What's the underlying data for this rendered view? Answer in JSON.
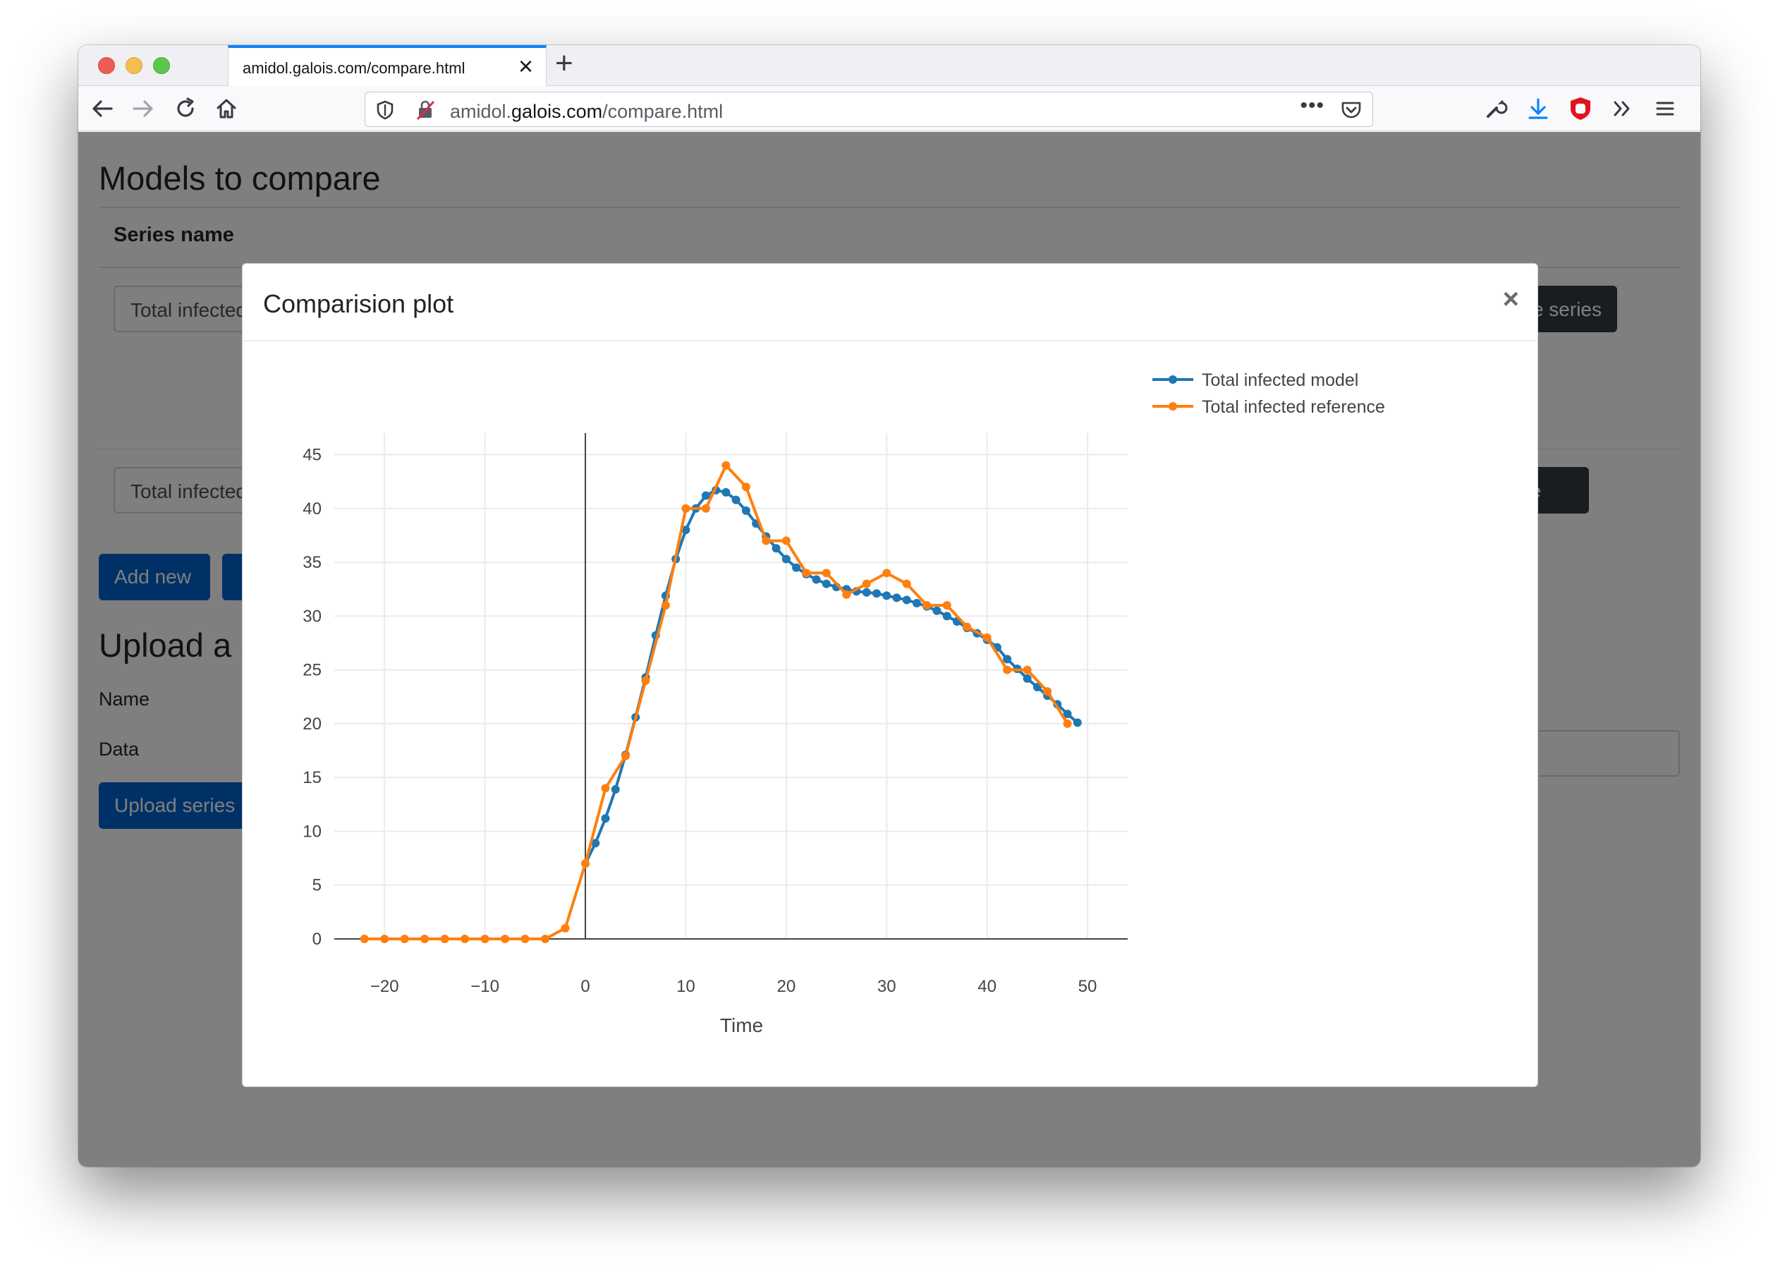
{
  "browser": {
    "tab_title": "amidol.galois.com/compare.html",
    "url_prefix": "amidol.",
    "url_domain": "galois.com",
    "url_path": "/compare.html"
  },
  "page": {
    "heading": "Models to compare",
    "table_header": "Series name",
    "row1_input": "Total infected model",
    "row1_button": "Remove series",
    "row2_input": "Total infected reference",
    "row2_button": "Remove series",
    "add_new_label": "Add new",
    "upload_heading": "Upload a series",
    "name_label": "Name",
    "data_label": "Data",
    "upload_button": "Upload series"
  },
  "modal": {
    "title": "Comparision plot",
    "close_label": "×"
  },
  "chart_data": {
    "type": "line",
    "title": "",
    "xlabel": "Time",
    "ylabel": "",
    "xlim": [
      -25,
      54
    ],
    "ylim": [
      0,
      47
    ],
    "xticks": [
      -20,
      -10,
      0,
      10,
      20,
      30,
      40,
      50
    ],
    "yticks": [
      0,
      5,
      10,
      15,
      20,
      25,
      30,
      35,
      40,
      45
    ],
    "grid": true,
    "legend_position": "top-right",
    "series": [
      {
        "name": "Total infected model",
        "color": "#1f77b4",
        "x": [
          0,
          1,
          2,
          3,
          4,
          5,
          6,
          7,
          8,
          9,
          10,
          11,
          12,
          13,
          14,
          15,
          16,
          17,
          18,
          19,
          20,
          21,
          22,
          23,
          24,
          25,
          26,
          27,
          28,
          29,
          30,
          31,
          32,
          33,
          34,
          35,
          36,
          37,
          38,
          39,
          40,
          41,
          42,
          43,
          44,
          45,
          46,
          47,
          48,
          49
        ],
        "y": [
          7.0,
          8.9,
          11.2,
          13.9,
          17.1,
          20.6,
          24.3,
          28.2,
          31.9,
          35.3,
          38.0,
          40.0,
          41.2,
          41.7,
          41.5,
          40.8,
          39.8,
          38.6,
          37.4,
          36.3,
          35.3,
          34.5,
          33.9,
          33.4,
          33.0,
          32.7,
          32.5,
          32.3,
          32.2,
          32.1,
          31.9,
          31.7,
          31.5,
          31.2,
          30.9,
          30.5,
          30.0,
          29.5,
          28.9,
          28.4,
          27.8,
          27.1,
          26.0,
          25.1,
          24.2,
          23.4,
          22.6,
          21.8,
          20.9,
          20.1
        ]
      },
      {
        "name": "Total infected reference",
        "color": "#ff7f0e",
        "x": [
          -22,
          -20,
          -18,
          -16,
          -14,
          -12,
          -10,
          -8,
          -6,
          -4,
          -2,
          0,
          2,
          4,
          6,
          8,
          10,
          12,
          14,
          16,
          18,
          20,
          22,
          24,
          26,
          28,
          30,
          32,
          34,
          36,
          38,
          40,
          42,
          44,
          46,
          48
        ],
        "y": [
          0,
          0,
          0,
          0,
          0,
          0,
          0,
          0,
          0,
          0,
          1,
          7,
          14,
          17,
          24,
          31,
          40,
          40,
          44,
          42,
          37,
          37,
          34,
          34,
          32,
          33,
          34,
          33,
          31,
          31,
          29,
          28,
          25,
          25,
          23,
          20
        ]
      }
    ]
  }
}
